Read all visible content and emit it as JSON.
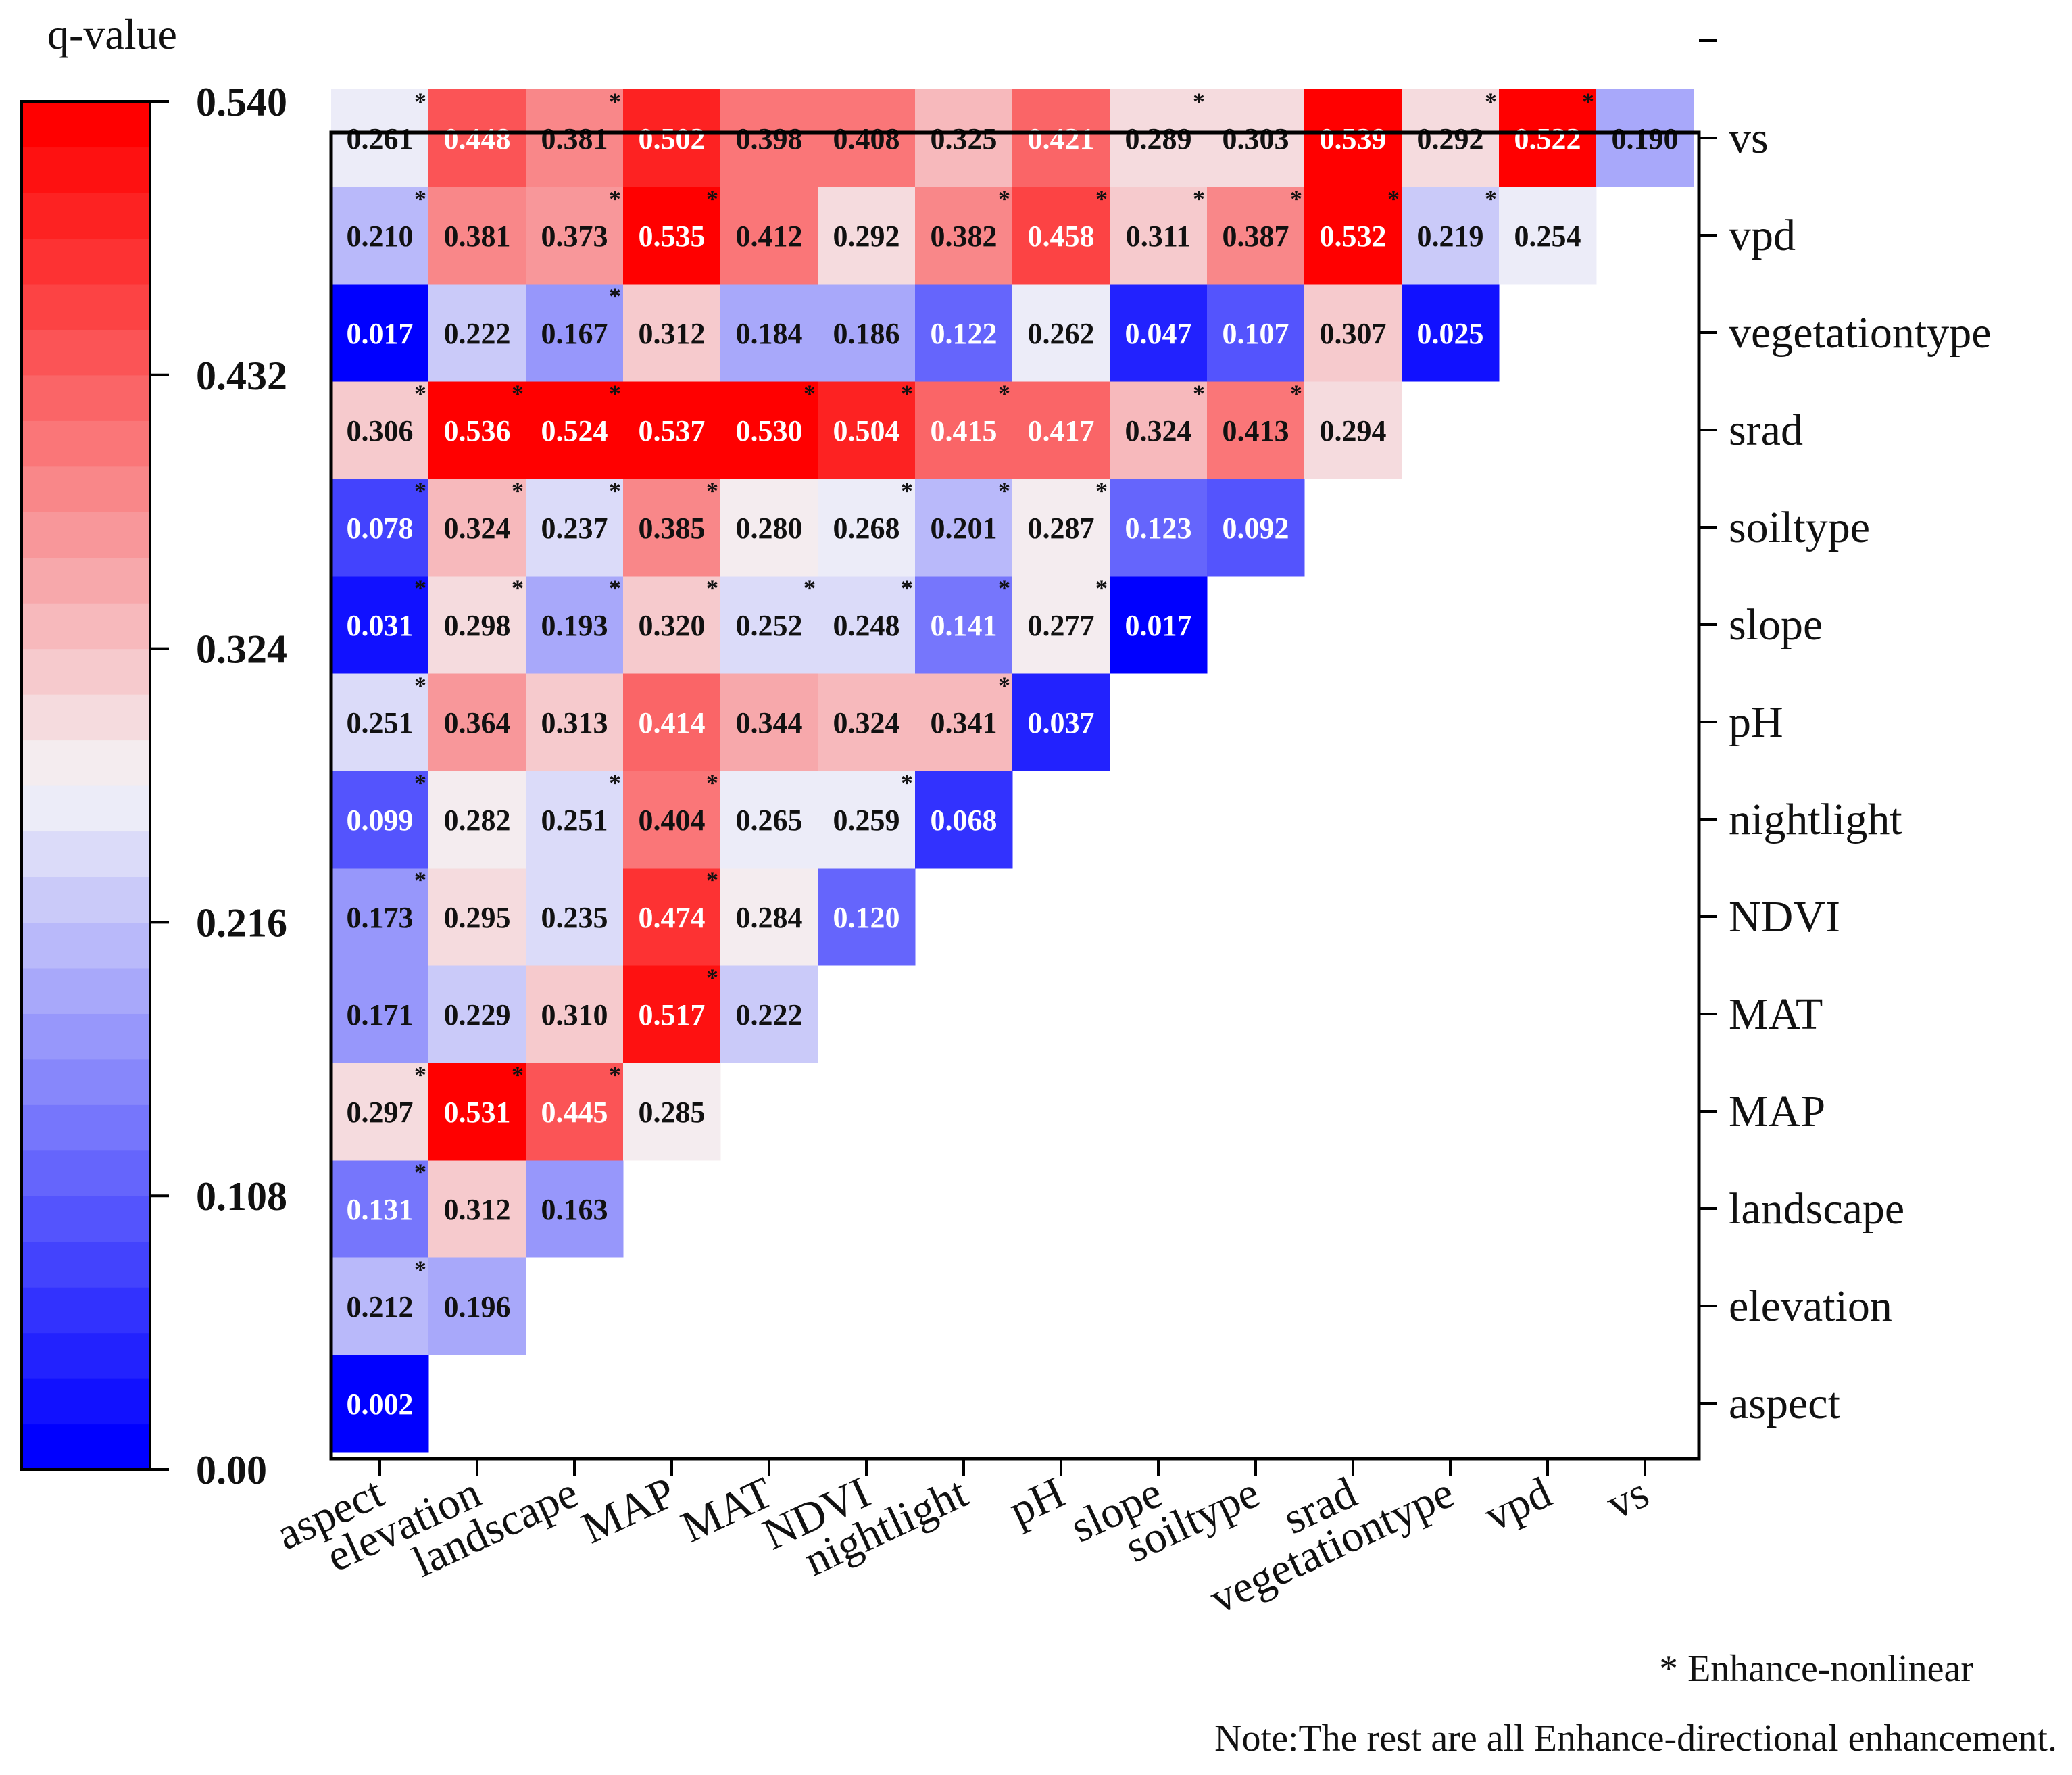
{
  "chart_data": {
    "type": "heatmap",
    "shape": "lower-triangle",
    "variables": [
      "aspect",
      "elevation",
      "landscape",
      "MAP",
      "MAT",
      "NDVI",
      "nightlight",
      "pH",
      "slope",
      "soiltype",
      "srad",
      "vegetationtype",
      "vpd",
      "vs"
    ],
    "matrix": [
      [
        0.002
      ],
      [
        0.212,
        0.196
      ],
      [
        0.131,
        0.312,
        0.163
      ],
      [
        0.297,
        0.531,
        0.445,
        0.285
      ],
      [
        0.171,
        0.229,
        0.31,
        0.517,
        0.222
      ],
      [
        0.173,
        0.295,
        0.235,
        0.474,
        0.284,
        0.12
      ],
      [
        0.099,
        0.282,
        0.251,
        0.404,
        0.265,
        0.259,
        0.068
      ],
      [
        0.251,
        0.364,
        0.313,
        0.414,
        0.344,
        0.324,
        0.341,
        0.037
      ],
      [
        0.031,
        0.298,
        0.193,
        0.32,
        0.252,
        0.248,
        0.141,
        0.277,
        0.017
      ],
      [
        0.078,
        0.324,
        0.237,
        0.385,
        0.28,
        0.268,
        0.201,
        0.287,
        0.123,
        0.092
      ],
      [
        0.306,
        0.536,
        0.524,
        0.537,
        0.53,
        0.504,
        0.415,
        0.417,
        0.324,
        0.413,
        0.294
      ],
      [
        0.017,
        0.222,
        0.167,
        0.312,
        0.184,
        0.186,
        0.122,
        0.262,
        0.047,
        0.107,
        0.307,
        0.025
      ],
      [
        0.21,
        0.381,
        0.373,
        0.535,
        0.412,
        0.292,
        0.382,
        0.458,
        0.311,
        0.387,
        0.532,
        0.219,
        0.254
      ],
      [
        0.261,
        0.448,
        0.381,
        0.502,
        0.398,
        0.408,
        0.325,
        0.421,
        0.289,
        0.303,
        0.539,
        0.292,
        0.522,
        0.19
      ]
    ],
    "labels": [
      [
        "0.002"
      ],
      [
        "0.212",
        "0.196"
      ],
      [
        "0.131",
        "0.312",
        "0.163"
      ],
      [
        "0.297",
        "0.531",
        "0.445",
        "0.285"
      ],
      [
        "0.171",
        "0.229",
        "0.310",
        "0.517",
        "0.222"
      ],
      [
        "0.173",
        "0.295",
        "0.235",
        "0.474",
        "0.284",
        "0.120"
      ],
      [
        "0.099",
        "0.282",
        "0.251",
        "0.404",
        "0.265",
        "0.259",
        "0.068"
      ],
      [
        "0.251",
        "0.364",
        "0.313",
        "0.414",
        "0.344",
        "0.324",
        "0.341",
        "0.037"
      ],
      [
        "0.031",
        "0.298",
        "0.193",
        "0.320",
        "0.252",
        "0.248",
        "0.141",
        "0.277",
        "0.017"
      ],
      [
        "0.078",
        "0.324",
        "0.237",
        "0.385",
        "0.280",
        "0.268",
        "0.201",
        "0.287",
        "0.123",
        "0.092"
      ],
      [
        "0.306",
        "0.536",
        "0.524",
        "0.537",
        "0.530",
        "0.504",
        "0.415",
        "0.417",
        "0.324",
        "0.413",
        "0.294"
      ],
      [
        "0.017",
        "0.222",
        "0.167",
        "0.312",
        "0.184",
        "0.186",
        "0.122",
        "0.262",
        "0.047",
        "0.107",
        "0.307",
        "0.025"
      ],
      [
        "0.210",
        "0.381",
        "0.373",
        "0.535",
        "0.412",
        "0.292",
        "0.382",
        "0.458",
        "0.311",
        "0.387",
        "0.532",
        "0.219",
        "0.254"
      ],
      [
        "0.261",
        "0.448",
        "0.381",
        "0.502",
        "0.398",
        "0.408",
        "0.325",
        "0.421",
        "0.289",
        "0.303",
        "0.539",
        "0.292",
        "0.522",
        "0.190"
      ]
    ],
    "nonlinear": [
      [
        false
      ],
      [
        true,
        false
      ],
      [
        true,
        false,
        false
      ],
      [
        true,
        true,
        true,
        false
      ],
      [
        false,
        false,
        false,
        true,
        false
      ],
      [
        true,
        false,
        false,
        true,
        false,
        false
      ],
      [
        true,
        false,
        true,
        true,
        false,
        true,
        false
      ],
      [
        true,
        false,
        false,
        false,
        false,
        false,
        true,
        false
      ],
      [
        true,
        true,
        true,
        true,
        true,
        true,
        true,
        true,
        false
      ],
      [
        true,
        true,
        true,
        true,
        false,
        true,
        true,
        true,
        false,
        false
      ],
      [
        true,
        true,
        true,
        false,
        true,
        true,
        true,
        false,
        true,
        true,
        false
      ],
      [
        false,
        false,
        true,
        false,
        false,
        false,
        false,
        false,
        false,
        false,
        false,
        false
      ],
      [
        true,
        false,
        true,
        true,
        false,
        false,
        true,
        true,
        true,
        true,
        true,
        true,
        false
      ],
      [
        true,
        false,
        true,
        false,
        false,
        false,
        false,
        false,
        true,
        false,
        false,
        true,
        true,
        false
      ]
    ],
    "colorbar": {
      "title": "q-value",
      "min": 0.0,
      "max": 0.54,
      "tick_labels": [
        "0.00",
        "0.108",
        "0.216",
        "0.324",
        "0.432",
        "0.540"
      ],
      "low_color": "#0000ff",
      "mid_color": "#f4f4f8",
      "high_color": "#ff0000"
    },
    "legend_star": "* Enhance-nonlinear",
    "note": "Note:The rest are all Enhance-directional enhancement."
  }
}
